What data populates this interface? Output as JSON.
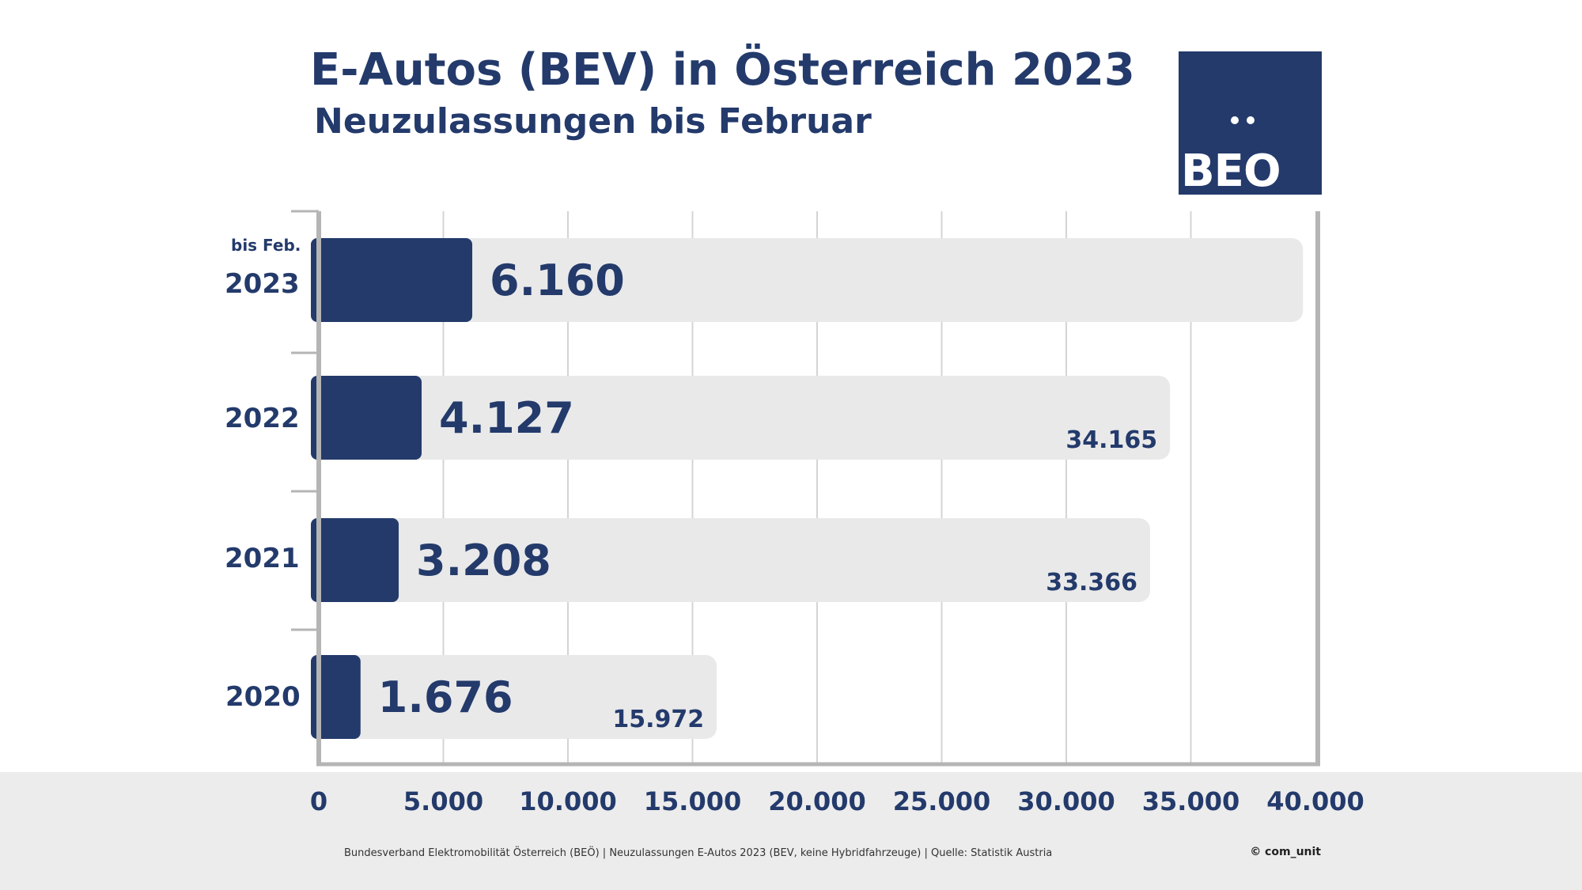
{
  "header": {
    "title": "E-Autos (BEV) in Österreich 2023",
    "subtitle": "Neuzulassungen bis Februar"
  },
  "logo": {
    "text": "BEO"
  },
  "footer": {
    "note": "Bundesverband Elektromobilität Österreich (BEÖ) | Neuzulassungen E-Autos 2023 (BEV, keine Hybridfahrzeuge) | Quelle: Statistik Austria",
    "copyright": "© com_unit"
  },
  "colors": {
    "accent": "#233a6b",
    "background_bar": "#e9e9ea",
    "grid": "#d4d4d4",
    "axis": "#b5b5b5",
    "footer_band": "#ececec"
  },
  "chart_data": {
    "type": "bar",
    "orientation": "horizontal",
    "title": "E-Autos (BEV) in Österreich 2023",
    "subtitle": "Neuzulassungen bis Februar",
    "categories": [
      "2023",
      "2022",
      "2021",
      "2020"
    ],
    "category_note": "bis Feb.",
    "series": [
      {
        "name": "",
        "values": [
          6160,
          4127,
          3208,
          1676
        ],
        "labels": [
          "6.160",
          "4.127",
          "3.208",
          "1.676"
        ]
      },
      {
        "name": "",
        "values": [
          39500,
          34165,
          33366,
          15972
        ],
        "labels": [
          "",
          "34.165",
          "33.366",
          "15.972"
        ]
      }
    ],
    "xlim": [
      0,
      40000
    ],
    "xticks": [
      0,
      5000,
      10000,
      15000,
      20000,
      25000,
      30000,
      35000,
      40000
    ],
    "xtick_labels": [
      "0",
      "5.000",
      "10.000",
      "15.000",
      "20.000",
      "25.000",
      "30.000",
      "35.000",
      "40.000"
    ],
    "grid": true,
    "legend": "none"
  }
}
